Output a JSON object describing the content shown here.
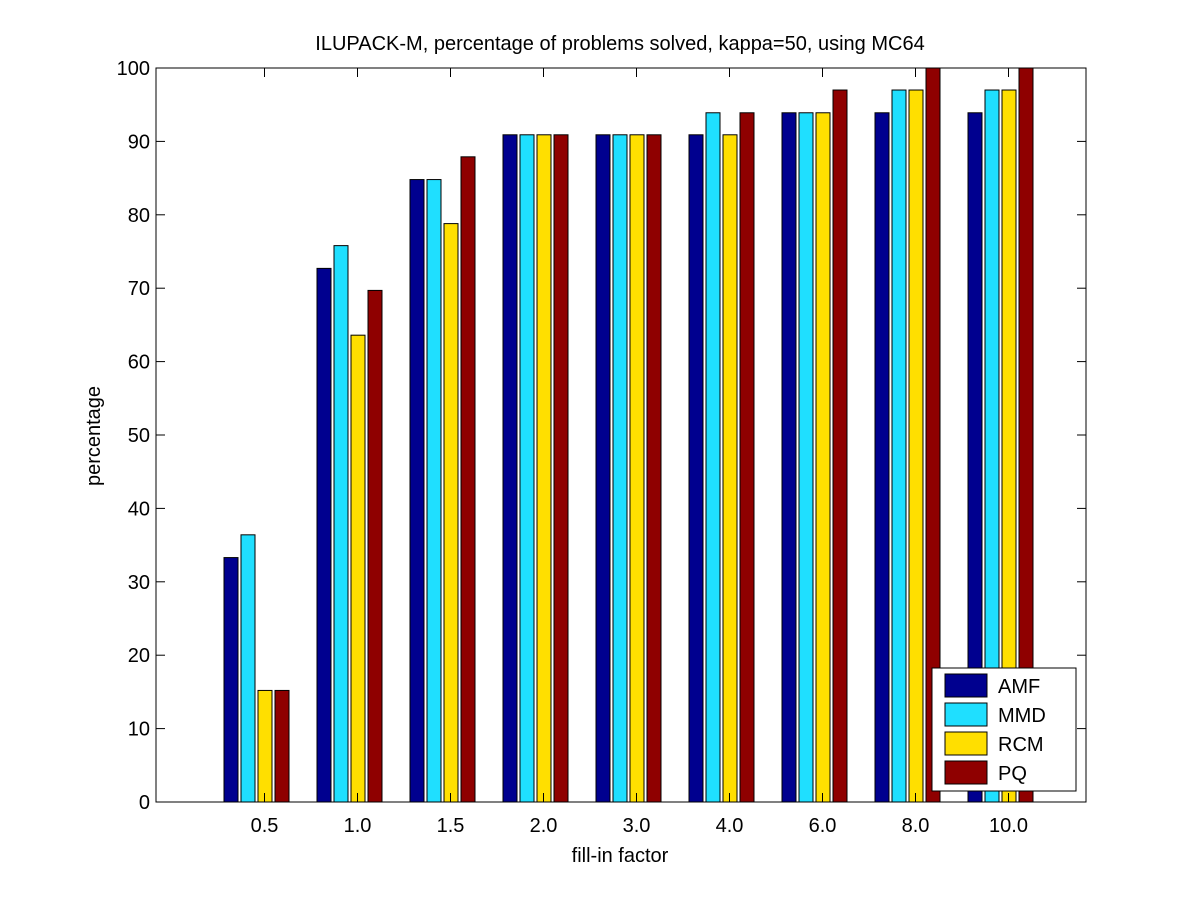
{
  "chart_data": {
    "type": "bar",
    "title": "ILUPACK-M, percentage of problems solved, kappa=50, using MC64",
    "xlabel": "fill-in factor",
    "ylabel": "percentage",
    "ylim": [
      0,
      100
    ],
    "yticks": [
      0,
      10,
      20,
      30,
      40,
      50,
      60,
      70,
      80,
      90,
      100
    ],
    "categories": [
      "0.5",
      "1.0",
      "1.5",
      "2.0",
      "3.0",
      "4.0",
      "6.0",
      "8.0",
      "10.0"
    ],
    "grid": false,
    "legend_position": "bottom-right",
    "series": [
      {
        "name": "AMF",
        "color": "#00008f",
        "values": [
          33.3,
          72.7,
          84.8,
          90.9,
          90.9,
          90.9,
          93.9,
          93.9,
          93.9
        ]
      },
      {
        "name": "MMD",
        "color": "#1fdfff",
        "values": [
          36.4,
          75.8,
          84.8,
          90.9,
          90.9,
          93.9,
          93.9,
          97.0,
          97.0
        ]
      },
      {
        "name": "RCM",
        "color": "#ffdf00",
        "values": [
          15.2,
          63.6,
          78.8,
          90.9,
          90.9,
          90.9,
          93.9,
          97.0,
          97.0
        ]
      },
      {
        "name": "PQ",
        "color": "#8f0000",
        "values": [
          15.2,
          69.7,
          87.9,
          90.9,
          90.9,
          93.9,
          97.0,
          100,
          100
        ]
      }
    ]
  }
}
